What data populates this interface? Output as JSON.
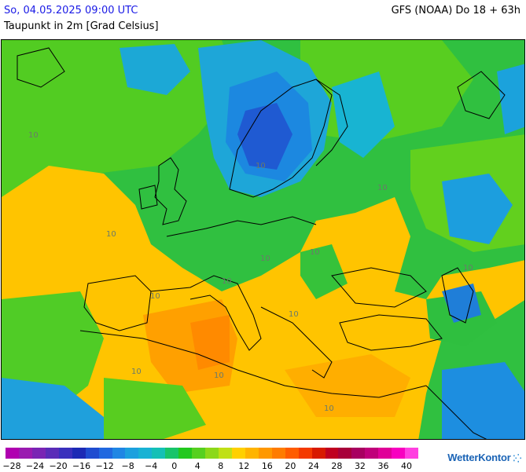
{
  "header": {
    "datetime": "So, 04.05.2025 09:00 UTC",
    "model_run": "GFS (NOAA) Do 18 + 63h",
    "parameter": "Taupunkt in 2m [Grad Celsius]"
  },
  "map": {
    "contour_labels": [
      "10",
      "10",
      "10",
      "10",
      "10",
      "10",
      "10",
      "10",
      "10",
      "10",
      "10",
      "10",
      "10"
    ]
  },
  "legend": {
    "colors": [
      "#b000b0",
      "#9a1ab0",
      "#7a24b4",
      "#5a2cb8",
      "#3a30bd",
      "#1c2ab5",
      "#1f4cd0",
      "#2068e0",
      "#1f86e4",
      "#1ca0de",
      "#18b2d4",
      "#14c0b6",
      "#18c46a",
      "#22c81e",
      "#56d020",
      "#8cd81a",
      "#c0e016",
      "#ffd000",
      "#ffb400",
      "#ff9800",
      "#ff7c00",
      "#ff5c00",
      "#f43a00",
      "#d81a00",
      "#c00020",
      "#a8003a",
      "#a80060",
      "#c0007a",
      "#e00098",
      "#f800c0",
      "#ff40e0"
    ],
    "ticks": [
      "−28",
      "−24",
      "−20",
      "−16",
      "−12",
      "−8",
      "−4",
      "0",
      "4",
      "8",
      "12",
      "16",
      "20",
      "24",
      "28",
      "32",
      "36",
      "40"
    ]
  },
  "brand": {
    "name": "WetterKontor"
  }
}
